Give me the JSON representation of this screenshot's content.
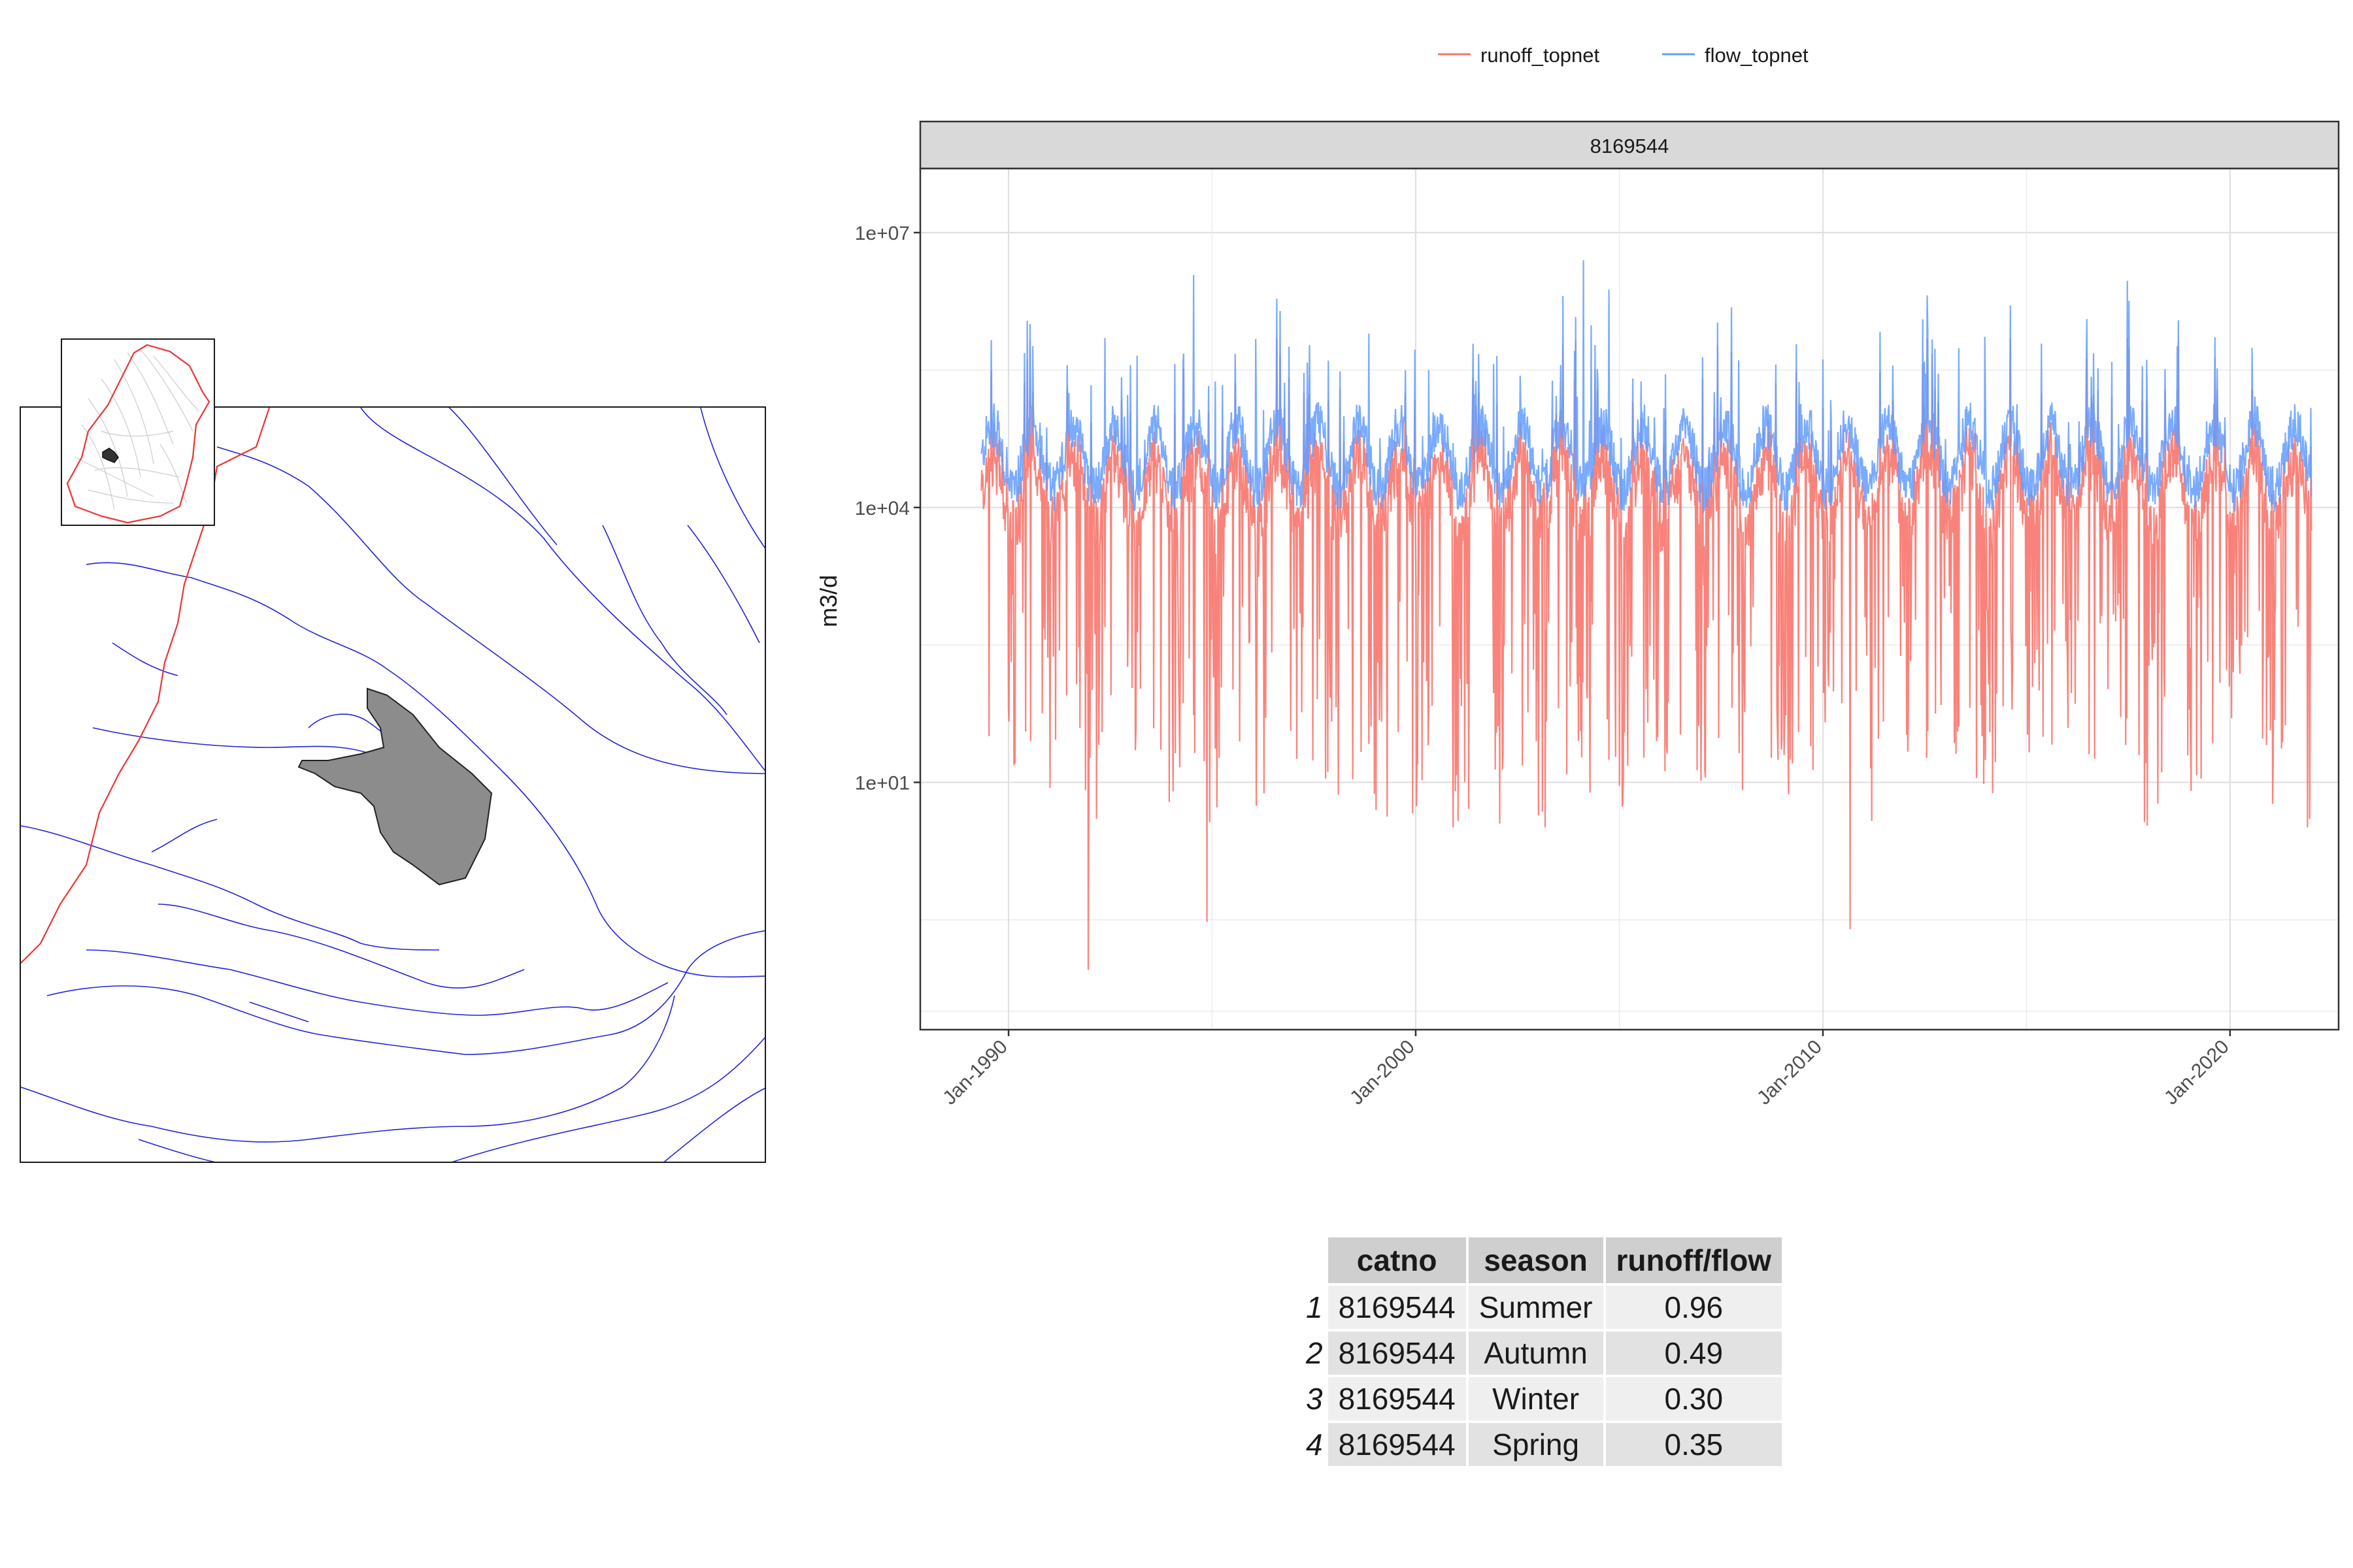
{
  "chart_data": {
    "type": "line",
    "facet_label": "8169544",
    "title": "",
    "xlabel": "",
    "ylabel": "m3/d",
    "y_scale": "log10",
    "ylim": [
      0.02,
      50000000
    ],
    "xlim": [
      "1987-11-01",
      "2022-09-01"
    ],
    "y_ticks": [
      10,
      10000,
      10000000
    ],
    "y_tick_labels": [
      "1e+01",
      "1e+04",
      "1e+07"
    ],
    "x_ticks": [
      "1990-01-01",
      "2000-01-01",
      "2010-01-01",
      "2020-01-01"
    ],
    "x_tick_labels": [
      "Jan-1990",
      "Jan-2000",
      "Jan-2010",
      "Jan-2020"
    ],
    "legend_position": "top",
    "grid": true,
    "series": [
      {
        "name": "runoff_topnet",
        "color": "#F8766D",
        "start": "1989-05-01",
        "end": "2021-12-31",
        "typical_low": 2000,
        "typical_high": 150000,
        "min": 0.08,
        "max": 700000
      },
      {
        "name": "flow_topnet",
        "color": "#619CFF",
        "start": "1989-05-01",
        "end": "2021-12-31",
        "typical_low": 10000,
        "typical_high": 300000,
        "min": 900,
        "max": 5000000
      }
    ],
    "annotated_extremes": [
      {
        "series": "flow_topnet",
        "x": "2004-02-15",
        "y": 5000000
      },
      {
        "series": "runoff_topnet",
        "x": "1991-12-15",
        "y": 0.09
      },
      {
        "series": "runoff_topnet",
        "x": "1994-11-15",
        "y": 0.3
      },
      {
        "series": "runoff_topnet",
        "x": "2010-09-01",
        "y": 0.25
      }
    ]
  },
  "table": {
    "headers": [
      "catno",
      "season",
      "runoff/flow"
    ],
    "rows": [
      {
        "n": "1",
        "catno": "8169544",
        "season": "Summer",
        "ratio": "0.96"
      },
      {
        "n": "2",
        "catno": "8169544",
        "season": "Autumn",
        "ratio": "0.49"
      },
      {
        "n": "3",
        "catno": "8169544",
        "season": "Winter",
        "ratio": "0.30"
      },
      {
        "n": "4",
        "catno": "8169544",
        "season": "Spring",
        "ratio": "0.35"
      }
    ]
  },
  "map": {
    "river_color": "#2222dd",
    "boundary_color": "#ee3333",
    "catchment_color": "#8c8c8c",
    "inset_river_color": "#cccccc"
  }
}
